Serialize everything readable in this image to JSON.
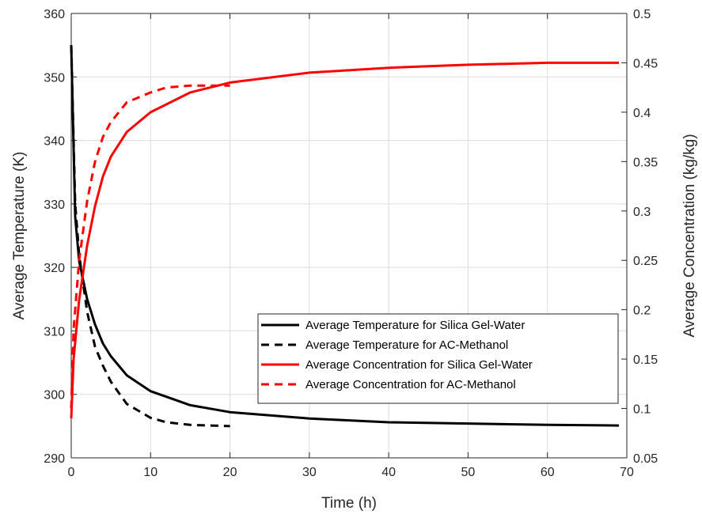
{
  "chart_data": {
    "type": "line",
    "xlabel": "Time (h)",
    "ylabel_left": "Average Temperature (K)",
    "ylabel_right": "Average Concentration (kg/kg)",
    "xlim": [
      0,
      70
    ],
    "ylim_left": [
      290,
      360
    ],
    "ylim_right": [
      0.05,
      0.5
    ],
    "x_ticks": [
      0,
      10,
      20,
      30,
      40,
      50,
      60,
      70
    ],
    "y_left_ticks": [
      290,
      300,
      310,
      320,
      330,
      340,
      350,
      360
    ],
    "y_right_ticks": [
      0.05,
      0.1,
      0.15,
      0.2,
      0.25,
      0.3,
      0.35,
      0.4,
      0.45,
      0.5
    ],
    "y_right_tick_labels": [
      "0.05",
      "0.1",
      "0.15",
      "0.2",
      "0.25",
      "0.3",
      "0.35",
      "0.4",
      "0.45",
      "0.5"
    ],
    "grid": true,
    "legend_position": "lower-right",
    "series": [
      {
        "name": "Average Temperature for Silica Gel-Water",
        "axis": "left",
        "color": "#000000",
        "dash": "solid",
        "x": [
          0,
          0.5,
          1,
          2,
          3,
          4,
          5,
          7,
          10,
          15,
          20,
          30,
          40,
          50,
          60,
          69
        ],
        "y": [
          355,
          328,
          321,
          315,
          311,
          308,
          306,
          303,
          300.5,
          298.3,
          297.2,
          296.2,
          295.6,
          295.4,
          295.2,
          295.1
        ]
      },
      {
        "name": "Average Temperature for AC-Methanol",
        "axis": "left",
        "color": "#000000",
        "dash": "dashed",
        "x": [
          0,
          0.5,
          1,
          2,
          3,
          4,
          5,
          7,
          10,
          12,
          15,
          20
        ],
        "y": [
          355,
          330,
          322,
          313,
          307.5,
          304.5,
          302,
          298.5,
          296.3,
          295.6,
          295.2,
          295
        ]
      },
      {
        "name": "Average Concentration for Silica Gel-Water",
        "axis": "right",
        "color": "#ff0000",
        "dash": "solid",
        "x": [
          0,
          0.3,
          1,
          2,
          3,
          4,
          5,
          7,
          10,
          15,
          20,
          30,
          40,
          50,
          60,
          69
        ],
        "y": [
          0.09,
          0.15,
          0.21,
          0.265,
          0.305,
          0.335,
          0.355,
          0.38,
          0.4,
          0.42,
          0.43,
          0.44,
          0.445,
          0.448,
          0.45,
          0.45
        ]
      },
      {
        "name": "Average Concentration for AC-Methanol",
        "axis": "right",
        "color": "#ff0000",
        "dash": "dashed",
        "x": [
          0,
          0.3,
          1,
          2,
          3,
          4,
          5,
          7,
          10,
          12,
          15,
          20
        ],
        "y": [
          0.1,
          0.18,
          0.25,
          0.31,
          0.35,
          0.375,
          0.39,
          0.41,
          0.42,
          0.425,
          0.427,
          0.427
        ]
      }
    ]
  }
}
